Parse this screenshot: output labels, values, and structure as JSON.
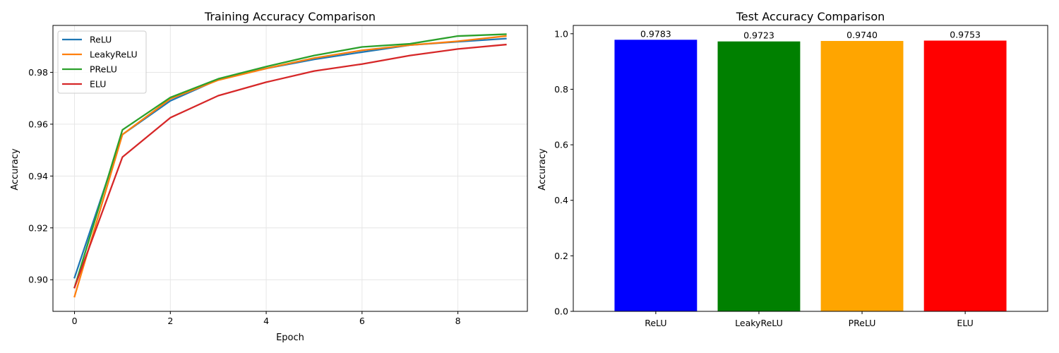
{
  "chart_data": [
    {
      "type": "line",
      "title": "Training Accuracy Comparison",
      "xlabel": "Epoch",
      "ylabel": "Accuracy",
      "xlim": [
        -0.45,
        9.45
      ],
      "ylim": [
        0.8878,
        0.9981
      ],
      "xticks": [
        0,
        2,
        4,
        6,
        8
      ],
      "yticks": [
        0.9,
        0.92,
        0.94,
        0.96,
        0.98
      ],
      "xtick_labels": [
        "0",
        "2",
        "4",
        "6",
        "8"
      ],
      "ytick_labels": [
        "0.90",
        "0.92",
        "0.94",
        "0.96",
        "0.98"
      ],
      "grid": true,
      "legend_position": "top-left",
      "x": [
        0,
        1,
        2,
        3,
        4,
        5,
        6,
        7,
        8,
        9
      ],
      "series": [
        {
          "name": "ReLU",
          "color": "#1f77b4",
          "values": [
            0.9008,
            0.956,
            0.969,
            0.9772,
            0.9815,
            0.985,
            0.9878,
            0.9905,
            0.9918,
            0.993
          ]
        },
        {
          "name": "LeakyReLU",
          "color": "#ff7f0e",
          "values": [
            0.8935,
            0.956,
            0.9698,
            0.977,
            0.9815,
            0.9855,
            0.9885,
            0.9905,
            0.992,
            0.994
          ]
        },
        {
          "name": "PReLU",
          "color": "#2ca02c",
          "values": [
            0.897,
            0.9578,
            0.9703,
            0.9775,
            0.9822,
            0.9865,
            0.9898,
            0.991,
            0.994,
            0.9947
          ]
        },
        {
          "name": "ELU",
          "color": "#d62728",
          "values": [
            0.897,
            0.9473,
            0.9625,
            0.971,
            0.9762,
            0.9805,
            0.9832,
            0.9865,
            0.989,
            0.9907
          ]
        }
      ]
    },
    {
      "type": "bar",
      "title": "Test Accuracy Comparison",
      "xlabel": "",
      "ylabel": "Accuracy",
      "ylim": [
        0,
        1.03
      ],
      "yticks": [
        0.0,
        0.2,
        0.4,
        0.6,
        0.8,
        1.0
      ],
      "ytick_labels": [
        "0.0",
        "0.2",
        "0.4",
        "0.6",
        "0.8",
        "1.0"
      ],
      "grid": false,
      "categories": [
        "ReLU",
        "LeakyReLU",
        "PReLU",
        "ELU"
      ],
      "values": [
        0.9783,
        0.9723,
        0.974,
        0.9753
      ],
      "value_labels": [
        "0.9783",
        "0.9723",
        "0.9740",
        "0.9753"
      ],
      "colors": [
        "#0000ff",
        "#008000",
        "#ffa500",
        "#ff0000"
      ]
    }
  ]
}
